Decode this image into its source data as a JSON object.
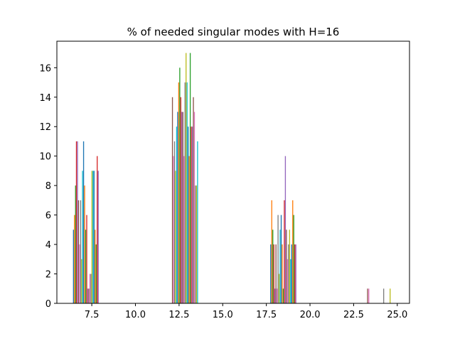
{
  "chart_data": {
    "type": "bar",
    "title": "% of needed singular modes with H=16",
    "xlabel": "",
    "ylabel": "",
    "xlim": [
      5.5,
      25.7
    ],
    "ylim": [
      0,
      17.8
    ],
    "xticks": [
      7.5,
      10.0,
      12.5,
      15.0,
      17.5,
      20.0,
      22.5,
      25.0
    ],
    "xtick_labels": [
      "7.5",
      "10.0",
      "12.5",
      "15.0",
      "17.5",
      "20.0",
      "22.5",
      "25.0"
    ],
    "yticks": [
      0,
      2,
      4,
      6,
      8,
      10,
      12,
      14,
      16
    ],
    "ytick_labels": [
      "0",
      "2",
      "4",
      "6",
      "8",
      "10",
      "12",
      "14",
      "16"
    ],
    "grid": false,
    "legend": "none",
    "colors": [
      "#1f77b4",
      "#ff7f0e",
      "#2ca02c",
      "#d62728",
      "#9467bd",
      "#8c564b",
      "#e377c2",
      "#7f7f7f",
      "#bcbd22",
      "#17becf"
    ],
    "bar_width": 0.055,
    "bars": [
      {
        "x": 6.45,
        "y": 5
      },
      {
        "x": 6.51,
        "y": 6
      },
      {
        "x": 6.57,
        "y": 8
      },
      {
        "x": 6.62,
        "y": 11
      },
      {
        "x": 6.68,
        "y": 11
      },
      {
        "x": 6.74,
        "y": 7
      },
      {
        "x": 6.8,
        "y": 4
      },
      {
        "x": 6.86,
        "y": 7
      },
      {
        "x": 6.92,
        "y": 3
      },
      {
        "x": 6.97,
        "y": 9
      },
      {
        "x": 7.03,
        "y": 11
      },
      {
        "x": 7.09,
        "y": 8
      },
      {
        "x": 7.15,
        "y": 5
      },
      {
        "x": 7.21,
        "y": 6
      },
      {
        "x": 7.27,
        "y": 1
      },
      {
        "x": 7.33,
        "y": 1
      },
      {
        "x": 7.39,
        "y": 2
      },
      {
        "x": 7.45,
        "y": 2
      },
      {
        "x": 7.51,
        "y": 9
      },
      {
        "x": 7.57,
        "y": 9
      },
      {
        "x": 7.63,
        "y": 9
      },
      {
        "x": 7.69,
        "y": 5
      },
      {
        "x": 7.75,
        "y": 4
      },
      {
        "x": 7.81,
        "y": 10
      },
      {
        "x": 7.87,
        "y": 9
      },
      {
        "x": 12.12,
        "y": 14
      },
      {
        "x": 12.18,
        "y": 10
      },
      {
        "x": 12.24,
        "y": 11
      },
      {
        "x": 12.3,
        "y": 9
      },
      {
        "x": 12.36,
        "y": 12
      },
      {
        "x": 12.42,
        "y": 13
      },
      {
        "x": 12.48,
        "y": 15
      },
      {
        "x": 12.54,
        "y": 16
      },
      {
        "x": 12.6,
        "y": 14
      },
      {
        "x": 12.66,
        "y": 13
      },
      {
        "x": 12.72,
        "y": 13
      },
      {
        "x": 12.78,
        "y": 10
      },
      {
        "x": 12.84,
        "y": 15
      },
      {
        "x": 12.9,
        "y": 17
      },
      {
        "x": 12.96,
        "y": 15
      },
      {
        "x": 13.02,
        "y": 12
      },
      {
        "x": 13.08,
        "y": 10
      },
      {
        "x": 13.14,
        "y": 17
      },
      {
        "x": 13.2,
        "y": 12
      },
      {
        "x": 13.26,
        "y": 12
      },
      {
        "x": 13.32,
        "y": 14
      },
      {
        "x": 13.38,
        "y": 13
      },
      {
        "x": 13.44,
        "y": 8
      },
      {
        "x": 13.5,
        "y": 8
      },
      {
        "x": 13.56,
        "y": 11
      },
      {
        "x": 17.75,
        "y": 4
      },
      {
        "x": 17.81,
        "y": 7
      },
      {
        "x": 17.87,
        "y": 5
      },
      {
        "x": 17.93,
        "y": 4
      },
      {
        "x": 17.99,
        "y": 1
      },
      {
        "x": 18.05,
        "y": 4
      },
      {
        "x": 18.11,
        "y": 1
      },
      {
        "x": 18.17,
        "y": 6
      },
      {
        "x": 18.23,
        "y": 2
      },
      {
        "x": 18.29,
        "y": 5
      },
      {
        "x": 18.35,
        "y": 6
      },
      {
        "x": 18.41,
        "y": 4
      },
      {
        "x": 18.47,
        "y": 1
      },
      {
        "x": 18.53,
        "y": 7
      },
      {
        "x": 18.59,
        "y": 10
      },
      {
        "x": 18.65,
        "y": 5
      },
      {
        "x": 18.71,
        "y": 3
      },
      {
        "x": 18.77,
        "y": 4
      },
      {
        "x": 18.83,
        "y": 5
      },
      {
        "x": 18.89,
        "y": 3
      },
      {
        "x": 18.95,
        "y": 4
      },
      {
        "x": 19.01,
        "y": 7
      },
      {
        "x": 19.07,
        "y": 6
      },
      {
        "x": 19.13,
        "y": 4
      },
      {
        "x": 19.19,
        "y": 4
      },
      {
        "x": 23.3,
        "y": 1
      },
      {
        "x": 23.37,
        "y": 1
      },
      {
        "x": 24.22,
        "y": 1
      },
      {
        "x": 24.59,
        "y": 1
      }
    ]
  }
}
